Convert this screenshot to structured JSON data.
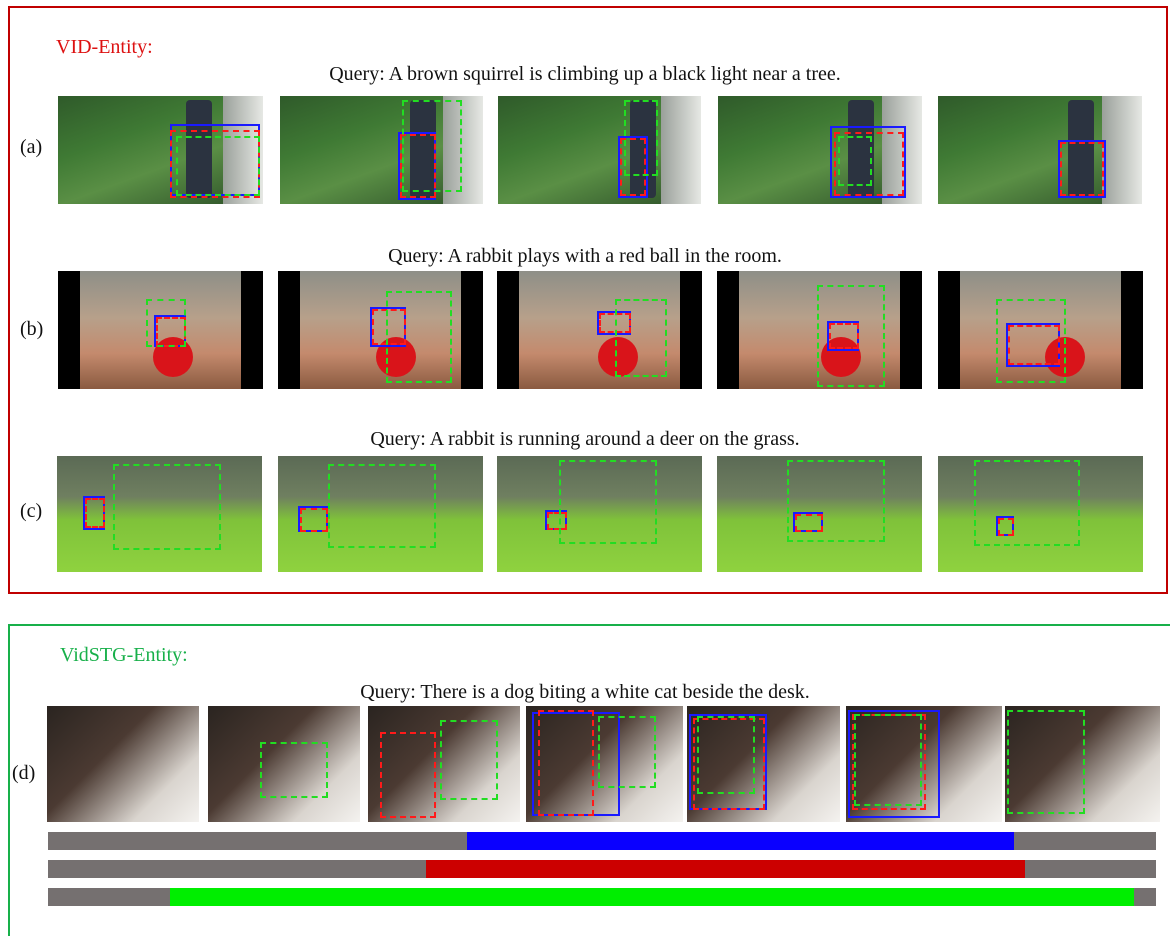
{
  "panels": [
    {
      "title": "VID-Entity:",
      "title_color": "#dd1111",
      "rows": [
        {
          "label": "(a)",
          "query": "Query: A brown squirrel is climbing up a black light near a tree."
        },
        {
          "label": "(b)",
          "query": "Query: A rabbit plays with a red ball in the room."
        },
        {
          "label": "(c)",
          "query": "Query: A rabbit is running around a deer on the grass."
        }
      ]
    },
    {
      "title": "VidSTG-Entity:",
      "title_color": "#18b04a",
      "rows": [
        {
          "label": "(d)",
          "query": "Query: There is a dog biting a white cat beside the desk."
        }
      ]
    }
  ],
  "frame_styles": {
    "forest": "linear-gradient(160deg,#2f5a2a 0%,#3f7a34 35%,#5a8f45 60%,#2c4f28 100%)",
    "room": "linear-gradient(180deg,#8e8f88 0%,#b7a08a 40%,#c48a6d 70%,#8a5a40 100%)",
    "grass": "linear-gradient(180deg,#5b6a55 0%,#6f7f60 35%,#7fc23a 55%,#8fd23f 100%)",
    "dark": "linear-gradient(135deg,#2a2420 0%,#4b3a32 40%,#d9d4ce 75%,#f4f2ef 100%)"
  },
  "box_colors": {
    "ground_truth": "#ff1a1a",
    "ours": "#1a1aff",
    "baseline": "#22dd22"
  },
  "temporal_bars": [
    {
      "color": "#0a00ff",
      "start": 0.378,
      "end": 0.872
    },
    {
      "color": "#cc0000",
      "start": 0.341,
      "end": 0.882
    },
    {
      "color": "#00ee00",
      "start": 0.11,
      "end": 0.98
    }
  ]
}
